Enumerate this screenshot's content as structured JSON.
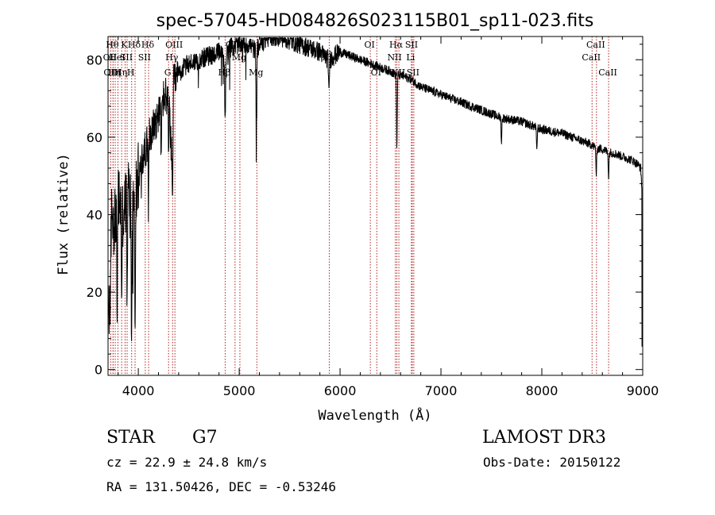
{
  "chart_data": {
    "type": "line",
    "title": "spec-57045-HD084826S023115B01_sp11-023.fits",
    "xlabel": "Wavelength (Å)",
    "ylabel": "Flux (relative)",
    "xlim": [
      3700,
      9000
    ],
    "ylim": [
      -1.5,
      86
    ],
    "xticks": [
      4000,
      5000,
      6000,
      7000,
      8000,
      9000
    ],
    "yticks": [
      0,
      20,
      40,
      60,
      80
    ],
    "grid": false,
    "series": [
      {
        "name": "spectrum",
        "anchors_x": [
          3700,
          3720,
          3740,
          3760,
          3800,
          3850,
          3900,
          3950,
          4000,
          4050,
          4100,
          4150,
          4200,
          4250,
          4300,
          4330,
          4350,
          4400,
          4450,
          4500,
          4600,
          4700,
          4800,
          4861,
          4900,
          5000,
          5100,
          5170,
          5200,
          5300,
          5400,
          5500,
          5600,
          5700,
          5800,
          5890,
          6000,
          6100,
          6200,
          6300,
          6400,
          6500,
          6563,
          6600,
          6700,
          6800,
          6900,
          7000,
          7200,
          7400,
          7600,
          7800,
          8000,
          8200,
          8400,
          8498,
          8542,
          8600,
          8662,
          8700,
          8800,
          8900,
          8950,
          8980,
          9000
        ],
        "anchors_y": [
          35,
          30,
          42,
          38,
          45,
          40,
          47,
          42,
          50,
          55,
          60,
          63,
          66,
          70,
          72,
          55,
          74,
          76,
          78,
          79,
          80,
          81,
          82,
          80,
          83,
          84,
          84,
          82,
          84,
          86,
          86,
          85,
          84,
          83,
          82,
          80,
          82,
          81,
          80,
          79,
          78,
          77,
          76,
          76,
          75,
          73,
          72,
          71,
          69,
          67,
          65,
          64,
          62,
          61,
          59,
          58,
          57,
          57,
          56,
          56,
          55,
          54,
          53,
          52,
          43
        ]
      }
    ],
    "absorption_features": [
      {
        "x": 3720,
        "depth": 0.7
      },
      {
        "x": 3790,
        "depth": 0.7
      },
      {
        "x": 3835,
        "depth": 0.55
      },
      {
        "x": 3889,
        "depth": 0.65
      },
      {
        "x": 3933,
        "depth": 0.85
      },
      {
        "x": 3968,
        "depth": 0.8
      },
      {
        "x": 4101,
        "depth": 0.3
      },
      {
        "x": 4227,
        "depth": 0.2
      },
      {
        "x": 4300,
        "depth": 0.25
      },
      {
        "x": 4340,
        "depth": 0.35
      },
      {
        "x": 4861,
        "depth": 0.2
      },
      {
        "x": 5170,
        "depth": 0.25
      },
      {
        "x": 5890,
        "depth": 0.12
      },
      {
        "x": 6563,
        "depth": 0.25
      },
      {
        "x": 7600,
        "depth": 0.1
      },
      {
        "x": 7950,
        "depth": 0.1
      },
      {
        "x": 8540,
        "depth": 0.12
      },
      {
        "x": 8662,
        "depth": 0.12
      }
    ],
    "line_markers": [
      {
        "x": 3727,
        "label": "OII",
        "row": 1
      },
      {
        "x": 3750,
        "label": "Hθ",
        "row": 0
      },
      {
        "x": 3750,
        "label": "OIII",
        "row": 2
      },
      {
        "x": 3771,
        "label": "Hη",
        "row": 2
      },
      {
        "x": 3798,
        "label": "HeI",
        "row": 1
      },
      {
        "x": 3835,
        "label": "Hη",
        "row": 2
      },
      {
        "x": 3869,
        "label": "K",
        "row": 0
      },
      {
        "x": 3889,
        "label": "SII",
        "row": 1
      },
      {
        "x": 3934,
        "label": "H",
        "row": 2
      },
      {
        "x": 3968,
        "label": "Hδ",
        "row": 0
      },
      {
        "x": 4069,
        "label": "SII",
        "row": 1
      },
      {
        "x": 4102,
        "label": "Hδ",
        "row": 0
      },
      {
        "x": 4300,
        "label": "G",
        "row": 2
      },
      {
        "x": 4340,
        "label": "Hγ",
        "row": 1
      },
      {
        "x": 4363,
        "label": "OIII",
        "row": 0
      },
      {
        "x": 4861,
        "label": "Hβ",
        "row": 2
      },
      {
        "x": 4959,
        "label": "OIII",
        "row": 0
      },
      {
        "x": 5007,
        "label": "Mg",
        "row": 1
      },
      {
        "x": 5175,
        "label": "Mg",
        "row": 2
      },
      {
        "x": 5893,
        "label": "Na",
        "row": 1
      },
      {
        "x": 6300,
        "label": "OI",
        "row": 0
      },
      {
        "x": 6364,
        "label": "OI",
        "row": 2
      },
      {
        "x": 6548,
        "label": "NII",
        "row": 1
      },
      {
        "x": 6563,
        "label": "Hα",
        "row": 0
      },
      {
        "x": 6583,
        "label": "NII",
        "row": 2
      },
      {
        "x": 6707,
        "label": "Li",
        "row": 1
      },
      {
        "x": 6716,
        "label": "SII",
        "row": 0
      },
      {
        "x": 6731,
        "label": "SII",
        "row": 2
      },
      {
        "x": 8498,
        "label": "CaII",
        "row": 1
      },
      {
        "x": 8542,
        "label": "CaII",
        "row": 0
      },
      {
        "x": 8662,
        "label": "CaII",
        "row": 2
      }
    ],
    "marker_color": "#b22222"
  },
  "info": {
    "object_class": "STAR",
    "subclass": "G7",
    "survey": "LAMOST DR3",
    "redshift_line": "cz = 22.9 ± 24.8 km/s",
    "obs_date_line": "Obs-Date: 20150122",
    "coords_line": "RA = 131.50426, DEC =  -0.53246"
  }
}
